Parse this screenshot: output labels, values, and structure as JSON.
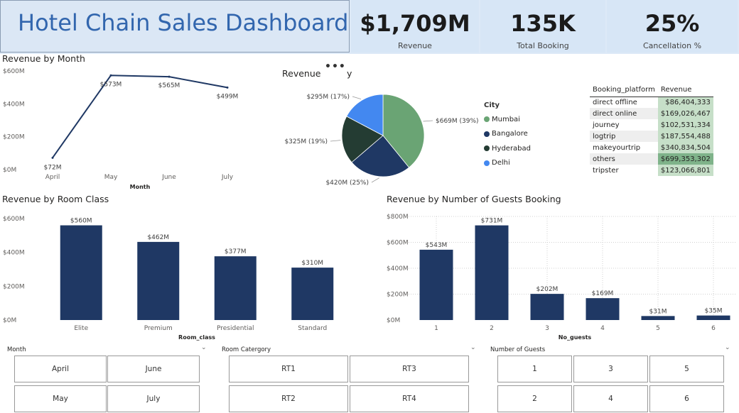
{
  "header": {
    "title": "Hotel Chain Sales Dashboard",
    "kpis": [
      {
        "value": "$1,709M",
        "label": "Revenue"
      },
      {
        "value": "135K",
        "label": "Total Booking"
      },
      {
        "value": "25%",
        "label": "Cancellation %"
      }
    ]
  },
  "month_chart": {
    "title": "Revenue by Month",
    "xlabel": "Month",
    "y_ticks": [
      "$600M",
      "$400M",
      "$200M",
      "$0M"
    ]
  },
  "city_chart": {
    "title_left": "Revenue",
    "title_right": "y",
    "more_icon": "more-options-icon",
    "legend_title": "City"
  },
  "platform_table": {
    "headers": [
      "Booking_platform",
      "Revenue"
    ],
    "rows": [
      {
        "platform": "direct offline",
        "revenue": "$86,404,333"
      },
      {
        "platform": "direct online",
        "revenue": "$169,026,467"
      },
      {
        "platform": "journey",
        "revenue": "$102,531,334"
      },
      {
        "platform": "logtrip",
        "revenue": "$187,554,488"
      },
      {
        "platform": "makeyourtrip",
        "revenue": "$340,834,504"
      },
      {
        "platform": "others",
        "revenue": "$699,353,302"
      },
      {
        "platform": "tripster",
        "revenue": "$123,066,801"
      }
    ]
  },
  "room_chart": {
    "title": "Revenue by Room Class",
    "xlabel": "Room_class",
    "y_ticks": [
      "$600M",
      "$400M",
      "$200M",
      "$0M"
    ]
  },
  "guests_chart": {
    "title": "Revenue by Number of Guests Booking",
    "xlabel": "No_guests",
    "y_ticks": [
      "$800M",
      "$600M",
      "$400M",
      "$200M",
      "$0M"
    ]
  },
  "slicers": {
    "month": {
      "header": "Month",
      "options": [
        "April",
        "June",
        "May",
        "July"
      ]
    },
    "room": {
      "header": "Room Catergory",
      "options": [
        "RT1",
        "RT3",
        "RT2",
        "RT4"
      ]
    },
    "guests": {
      "header": "Number of Guests",
      "options": [
        "1",
        "3",
        "5",
        "2",
        "4",
        "6"
      ]
    },
    "chevron_icon": "chevron-down-icon"
  },
  "colors": {
    "navy": "#1f3864",
    "title_blue": "#3266ae",
    "mumbai": "#6aa474",
    "bangalore": "#1f3864",
    "hyderabad": "#243c33",
    "delhi": "#4388f0"
  },
  "chart_data": [
    {
      "type": "line",
      "title": "Revenue by Month",
      "categories": [
        "April",
        "May",
        "June",
        "July"
      ],
      "values": [
        72,
        573,
        565,
        499
      ],
      "labels": [
        "$72M",
        "$573M",
        "$565M",
        "$499M"
      ],
      "xlabel": "Month",
      "ylim": [
        0,
        600
      ],
      "grid": false
    },
    {
      "type": "pie",
      "categories": [
        "Mumbai",
        "Bangalore",
        "Hyderabad",
        "Delhi"
      ],
      "values": [
        669,
        420,
        325,
        295
      ],
      "labels": [
        "$669M (39%)",
        "$420M (25%)",
        "$325M (19%)",
        "$295M (17%)"
      ],
      "legend": "right"
    },
    {
      "type": "bar",
      "title": "Revenue by Room Class",
      "categories": [
        "Elite",
        "Premium",
        "Presidential",
        "Standard"
      ],
      "values": [
        560,
        462,
        377,
        310
      ],
      "labels": [
        "$560M",
        "$462M",
        "$377M",
        "$310M"
      ],
      "xlabel": "Room_class",
      "ylim": [
        0,
        600
      ],
      "grid": false
    },
    {
      "type": "bar",
      "title": "Revenue by Number of Guests Booking",
      "categories": [
        "1",
        "2",
        "3",
        "4",
        "5",
        "6"
      ],
      "values": [
        543,
        731,
        202,
        169,
        31,
        35
      ],
      "labels": [
        "$543M",
        "$731M",
        "$202M",
        "$169M",
        "$31M",
        "$35M"
      ],
      "xlabel": "No_guests",
      "ylim": [
        0,
        800
      ],
      "grid": true
    }
  ]
}
